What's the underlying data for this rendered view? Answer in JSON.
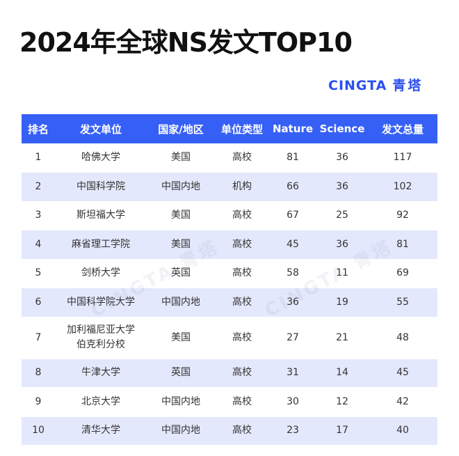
{
  "title": "2024年全球NS发文TOP10",
  "brand": {
    "latin": "CINGTA",
    "cn": "青塔"
  },
  "watermark_text": "CINGTA 青塔",
  "colors": {
    "header_bg": "#3660f5",
    "alt_row_bg": "#e4e8fc",
    "brand": "#2b4ff0"
  },
  "table": {
    "headers": [
      "排名",
      "发文单位",
      "国家/地区",
      "单位类型",
      "Nature",
      "Science",
      "发文总量"
    ],
    "rows": [
      {
        "rank": "1",
        "unit": "哈佛大学",
        "country": "美国",
        "type": "高校",
        "nature": "81",
        "science": "36",
        "total": "117"
      },
      {
        "rank": "2",
        "unit": "中国科学院",
        "country": "中国内地",
        "type": "机构",
        "nature": "66",
        "science": "36",
        "total": "102"
      },
      {
        "rank": "3",
        "unit": "斯坦福大学",
        "country": "美国",
        "type": "高校",
        "nature": "67",
        "science": "25",
        "total": "92"
      },
      {
        "rank": "4",
        "unit": "麻省理工学院",
        "country": "美国",
        "type": "高校",
        "nature": "45",
        "science": "36",
        "total": "81"
      },
      {
        "rank": "5",
        "unit": "剑桥大学",
        "country": "英国",
        "type": "高校",
        "nature": "58",
        "science": "11",
        "total": "69"
      },
      {
        "rank": "6",
        "unit": "中国科学院大学",
        "country": "中国内地",
        "type": "高校",
        "nature": "36",
        "science": "19",
        "total": "55"
      },
      {
        "rank": "7",
        "unit": "加利福尼亚大学",
        "unit2": "伯克利分校",
        "country": "美国",
        "type": "高校",
        "nature": "27",
        "science": "21",
        "total": "48"
      },
      {
        "rank": "8",
        "unit": "牛津大学",
        "country": "英国",
        "type": "高校",
        "nature": "31",
        "science": "14",
        "total": "45"
      },
      {
        "rank": "9",
        "unit": "北京大学",
        "country": "中国内地",
        "type": "高校",
        "nature": "30",
        "science": "12",
        "total": "42"
      },
      {
        "rank": "10",
        "unit": "清华大学",
        "country": "中国内地",
        "type": "高校",
        "nature": "23",
        "science": "17",
        "total": "40"
      }
    ]
  }
}
